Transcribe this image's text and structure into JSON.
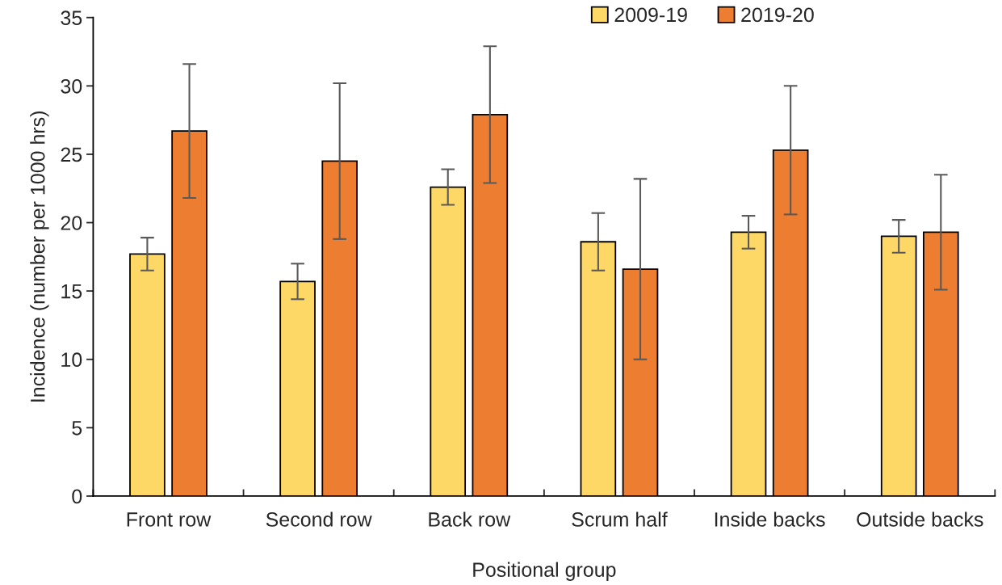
{
  "chart_data": {
    "type": "bar",
    "xlabel": "Positional group",
    "ylabel": "Incidence (number per 1000 hrs)",
    "categories": [
      "Front row",
      "Second row",
      "Back row",
      "Scrum half",
      "Inside backs",
      "Outside backs"
    ],
    "series": [
      {
        "name": "2009-19",
        "color": "#fdd866",
        "values": [
          17.7,
          15.7,
          22.6,
          18.6,
          19.3,
          19.0
        ],
        "errors": [
          1.2,
          1.3,
          1.3,
          2.1,
          1.2,
          1.2
        ]
      },
      {
        "name": "2019-20",
        "color": "#ed7d31",
        "values": [
          26.7,
          24.5,
          27.9,
          16.6,
          25.3,
          19.3
        ],
        "errors": [
          4.9,
          5.7,
          5.0,
          6.6,
          4.7,
          4.2
        ]
      }
    ],
    "ylim": [
      0,
      35
    ],
    "yticks": [
      0,
      5,
      10,
      15,
      20,
      25,
      30,
      35
    ],
    "grid": false,
    "legend": "top right"
  }
}
